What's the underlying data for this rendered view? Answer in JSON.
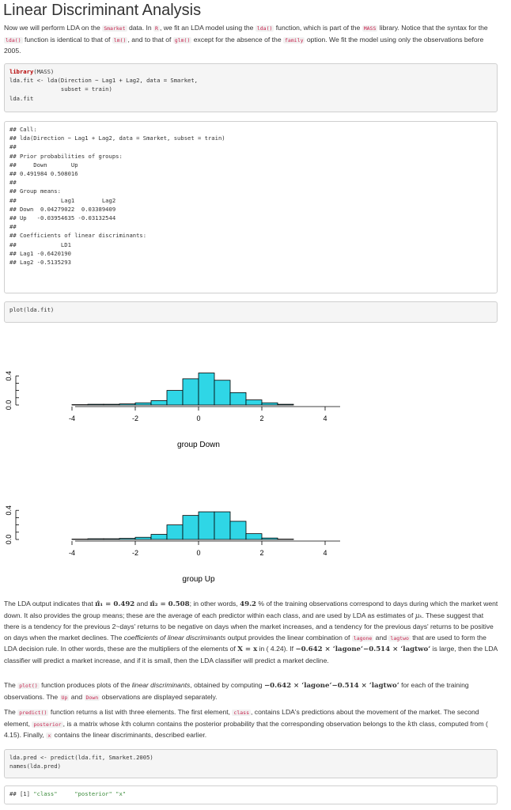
{
  "heading": "Linear Discriminant Analysis",
  "intro": {
    "t1": "Now we will perform LDA on the ",
    "c1": "Smarket",
    "t2": " data. In ",
    "c2": "R",
    "t3": ", we fit an LDA model using the ",
    "c3": "lda()",
    "t4": " function, which is part of the ",
    "c4": "MASS",
    "t5": " library. Notice that the syntax for the ",
    "c5": "lda()",
    "t6": " function is identical to that of ",
    "c6": "lm()",
    "t7": ", and to that of ",
    "c7": "glm()",
    "t8": " except for the absence of the ",
    "c8": "family",
    "t9": " option. We fit the model using only the observations before 2005."
  },
  "code1": {
    "kw": "library",
    "l1": "(MASS)",
    "l2": "lda.fit <- lda(Direction ~ Lag1 + Lag2, data = Smarket,",
    "l3": "               subset = train)",
    "l4": "lda.fit"
  },
  "output1": {
    "lines": [
      "## Call:",
      "## lda(Direction ~ Lag1 + Lag2, data = Smarket, subset = train)",
      "##",
      "## Prior probabilities of groups:",
      "##     Down       Up",
      "## 0.491984 0.508016",
      "##",
      "## Group means:",
      "##             Lag1        Lag2",
      "## Down  0.04279022  0.03389409",
      "## Up   -0.03954635 -0.03132544",
      "##",
      "## Coefficients of linear discriminants:",
      "##             LD1",
      "## Lag1 -0.6420190",
      "## Lag2 -0.5135293"
    ]
  },
  "code2": {
    "line": "plot(lda.fit)"
  },
  "chart_data": [
    {
      "type": "bar",
      "title": "",
      "xlabel": "group Down",
      "ylabel": "",
      "x_ticks": [
        "-4",
        "-2",
        "0",
        "2",
        "4"
      ],
      "y_ticks": [
        "0.0",
        "0.4"
      ],
      "xlim": [
        -4.5,
        4.5
      ],
      "ylim": [
        0,
        0.5
      ],
      "bar_width": 0.5,
      "bar_color": "#2fd6e6",
      "bins_left": [
        -4.0,
        -3.5,
        -3.0,
        -2.5,
        -2.0,
        -1.5,
        -1.0,
        -0.5,
        0.0,
        0.5,
        1.0,
        1.5,
        2.0,
        2.5
      ],
      "values": [
        0.005,
        0.01,
        0.01,
        0.015,
        0.03,
        0.06,
        0.2,
        0.36,
        0.44,
        0.34,
        0.17,
        0.07,
        0.03,
        0.01
      ]
    },
    {
      "type": "bar",
      "title": "",
      "xlabel": "group Up",
      "ylabel": "",
      "x_ticks": [
        "-4",
        "-2",
        "0",
        "2",
        "4"
      ],
      "y_ticks": [
        "0.0",
        "0.4"
      ],
      "xlim": [
        -4.5,
        4.5
      ],
      "ylim": [
        0,
        0.5
      ],
      "bar_width": 0.5,
      "bar_color": "#2fd6e6",
      "bins_left": [
        -4.0,
        -3.5,
        -3.0,
        -2.5,
        -2.0,
        -1.5,
        -1.0,
        -0.5,
        0.0,
        0.5,
        1.0,
        1.5,
        2.0,
        2.5
      ],
      "values": [
        0.005,
        0.01,
        0.01,
        0.015,
        0.03,
        0.07,
        0.2,
        0.33,
        0.38,
        0.38,
        0.25,
        0.08,
        0.02,
        0.005
      ]
    }
  ],
  "para2": {
    "t1": "The LDA output indicates that ",
    "m1": "π̂₁ = 0.492",
    "t2": " and ",
    "m2": "π̂₂ = 0.508",
    "t3": "; in other words, ",
    "m3": "49.2",
    "t4": " % of the training observations correspond to days during which the market went down. It also provides the group means; these are the average of each predictor within each class, and are used by LDA as estimates of ",
    "m4": "μₖ",
    "t5": ". These suggest that there is a tendency for the previous 2~days' returns to be negative on days when the market increases, and a tendency for the previous days' returns to be positive on days when the market declines. The ",
    "e1": "coefficients of linear discriminants",
    "t6": " output provides the linear combination of ",
    "c1": "lagone",
    "t7": " and ",
    "c2": "lagtwo",
    "t8": " that are used to form the LDA decision rule. In other words, these are the multipliers of the elements of ",
    "m5": "X = x",
    "t9": " in ( 4.24). If ",
    "m6": "−0.642 × ‘lagone‘−0.514 × ‘lagtwo‘",
    "t10": " is large, then the LDA classifier will predict a market increase, and if it is small, then the LDA classifier will predict a market decline."
  },
  "para3": {
    "t1": "The ",
    "c1": "plot()",
    "t2": " function produces plots of the ",
    "e1": "linear discriminants",
    "t3": ", obtained by computing ",
    "m1": "−0.642 × ‘lagone‘−0.514 × ‘lagtwo‘",
    "t4": " for each of the training observations. The ",
    "c2": "Up",
    "t5": " and ",
    "c3": "Down",
    "t6": " observations are displayed separately."
  },
  "para4": {
    "t1": "The ",
    "c1": "predict()",
    "t2": " function returns a list with three elements. The first element, ",
    "c2": "class",
    "t3": ", contains LDA's predictions about the movement of the market. The second element, ",
    "c3": "posterior",
    "t4": ", is a matrix whose ",
    "m1": "k",
    "t5": "th column contains the posterior probability that the corresponding observation belongs to the ",
    "m2": "k",
    "t6": "th class, computed from ( 4.15). Finally, ",
    "c4": "x",
    "t7": " contains the linear discriminants, described earlier."
  },
  "code3": {
    "l1": "lda.pred <- predict(lda.fit, Smarket.2005)",
    "l2": "names(lda.pred)"
  },
  "output2": {
    "pre": "## [1] ",
    "s1": "\"class\"",
    "mid": "     ",
    "s2": "\"posterior\"",
    "sp": " ",
    "s3": "\"x\""
  }
}
